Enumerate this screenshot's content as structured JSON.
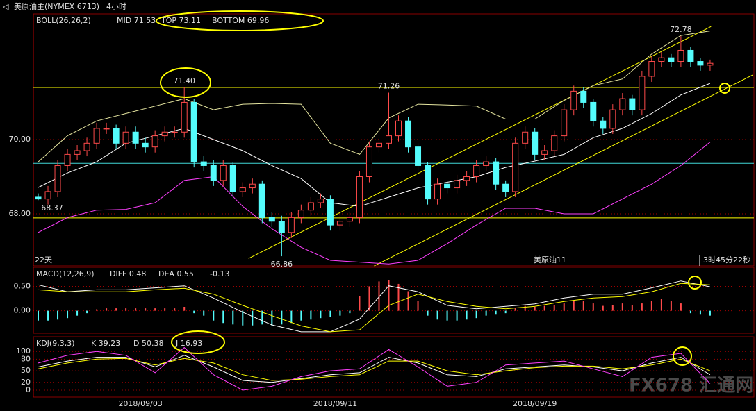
{
  "header": {
    "icon": "◁",
    "title": "美原油主(NYMEX 6713)",
    "period": "4小时",
    "watermark": "FX678 汇通网"
  },
  "chart_data": [
    {
      "type": "candlestick",
      "legend": [
        {
          "text": "BOLL(26,26,2)",
          "color": "#e6e6a0"
        },
        {
          "text": "MID 71.53",
          "color": "#ffffff"
        },
        {
          "text": "TOP 73.11",
          "color": "#ffff00"
        },
        {
          "text": "BOTTOM 69.96",
          "color": "#ff40ff"
        }
      ],
      "xlim": [
        -0.5,
        73.5
      ],
      "ylim": [
        66.6,
        73.38
      ],
      "yticks": [
        {
          "value": 68,
          "label": "68.00"
        },
        {
          "value": 70,
          "label": "70.00"
        }
      ],
      "grid": true,
      "candles": {
        "up_color": "#ff4a4a",
        "down_color": "#54fcfc",
        "open": [
          68.45,
          68.4,
          68.6,
          69.3,
          69.6,
          69.7,
          69.9,
          70.3,
          70.3,
          69.9,
          70.2,
          69.9,
          69.8,
          70.1,
          70.2,
          70.2,
          71.0,
          69.4,
          69.3,
          68.9,
          69.3,
          68.6,
          68.7,
          68.8,
          67.9,
          67.8,
          67.5,
          67.9,
          68.1,
          68.3,
          68.4,
          67.7,
          67.8,
          67.9,
          69.0,
          69.8,
          69.9,
          70.1,
          70.5,
          69.8,
          69.3,
          68.4,
          68.8,
          68.7,
          68.9,
          69.0,
          69.3,
          69.4,
          68.8,
          68.6,
          69.9,
          70.2,
          69.6,
          69.7,
          70.1,
          70.8,
          71.3,
          71.0,
          70.5,
          70.3,
          70.8,
          71.1,
          70.8,
          71.7,
          72.1,
          72.2,
          72.1,
          72.4,
          72.1,
          72.0
        ],
        "high": [
          68.55,
          68.75,
          69.45,
          69.75,
          69.85,
          70.05,
          70.45,
          70.45,
          70.4,
          70.35,
          70.35,
          70.05,
          70.25,
          70.35,
          70.35,
          71.4,
          71.1,
          69.55,
          69.45,
          69.45,
          69.4,
          68.85,
          68.95,
          68.9,
          68.05,
          67.95,
          68.05,
          68.25,
          68.45,
          68.55,
          68.5,
          67.95,
          68.05,
          69.15,
          69.95,
          70.05,
          71.26,
          70.65,
          70.6,
          69.9,
          69.4,
          68.95,
          68.9,
          69.05,
          69.15,
          69.45,
          69.55,
          69.5,
          68.9,
          70.05,
          70.35,
          70.3,
          69.85,
          70.25,
          70.95,
          71.45,
          71.4,
          71.1,
          70.6,
          70.95,
          71.25,
          71.2,
          71.85,
          72.25,
          72.35,
          72.3,
          72.78,
          72.5,
          72.2,
          72.15
        ],
        "low": [
          68.37,
          68.25,
          68.45,
          69.15,
          69.45,
          69.55,
          69.75,
          70.15,
          69.75,
          69.75,
          69.75,
          69.65,
          69.65,
          69.95,
          70.05,
          70.05,
          69.25,
          69.15,
          68.75,
          68.75,
          68.45,
          68.45,
          68.55,
          67.75,
          67.65,
          66.86,
          67.35,
          67.75,
          67.95,
          68.15,
          67.55,
          67.55,
          67.65,
          67.75,
          68.85,
          69.65,
          69.75,
          69.95,
          69.65,
          69.15,
          68.25,
          68.25,
          68.55,
          68.55,
          68.75,
          68.85,
          69.15,
          68.65,
          68.45,
          68.45,
          69.75,
          69.45,
          69.45,
          69.55,
          69.95,
          70.65,
          70.85,
          70.35,
          70.15,
          70.15,
          70.65,
          70.65,
          70.65,
          71.55,
          71.95,
          71.95,
          71.95,
          71.95,
          71.85,
          71.85
        ],
        "close": [
          68.4,
          68.6,
          69.3,
          69.6,
          69.7,
          69.9,
          70.3,
          70.3,
          69.9,
          70.2,
          69.9,
          69.8,
          70.1,
          70.2,
          70.2,
          71.0,
          69.4,
          69.3,
          68.9,
          69.3,
          68.6,
          68.7,
          68.8,
          67.9,
          67.8,
          67.5,
          67.9,
          68.1,
          68.3,
          68.4,
          67.7,
          67.8,
          67.9,
          69.0,
          69.8,
          69.9,
          70.1,
          70.5,
          69.8,
          69.3,
          68.4,
          68.8,
          68.7,
          68.9,
          69.0,
          69.3,
          69.4,
          68.8,
          68.6,
          69.9,
          70.2,
          69.6,
          69.7,
          70.1,
          70.8,
          71.3,
          71.0,
          70.5,
          70.3,
          70.8,
          71.1,
          70.8,
          71.7,
          72.1,
          72.2,
          72.1,
          72.4,
          72.1,
          72.0,
          72.05
        ]
      },
      "series": [
        {
          "color": "#e6e6a0",
          "x": [
            0,
            3,
            6,
            9,
            12,
            15,
            18,
            21,
            24,
            27,
            30,
            33,
            36,
            39,
            42,
            45,
            48,
            51,
            54,
            57,
            60,
            63,
            66,
            69
          ],
          "values": [
            69.4,
            70.1,
            70.5,
            70.7,
            70.9,
            71.1,
            70.8,
            70.95,
            70.97,
            70.95,
            69.9,
            69.6,
            70.58,
            70.95,
            70.93,
            70.9,
            70.55,
            70.55,
            71.05,
            71.45,
            71.63,
            72.3,
            72.8,
            72.92
          ]
        },
        {
          "color": "#ffffff",
          "x": [
            0,
            3,
            6,
            9,
            12,
            15,
            18,
            21,
            24,
            27,
            30,
            33,
            36,
            39,
            42,
            45,
            48,
            51,
            54,
            57,
            60,
            63,
            66,
            69
          ],
          "values": [
            68.71,
            69.1,
            69.4,
            69.9,
            70.1,
            70.3,
            70.0,
            69.7,
            69.3,
            68.95,
            68.3,
            68.2,
            68.45,
            68.7,
            68.85,
            69.0,
            69.25,
            69.42,
            69.6,
            70.05,
            70.3,
            70.7,
            71.2,
            71.51
          ]
        },
        {
          "color": "#ff40ff",
          "x": [
            0,
            3,
            6,
            9,
            12,
            15,
            18,
            21,
            24,
            27,
            30,
            33,
            36,
            39,
            42,
            45,
            48,
            51,
            54,
            57,
            60,
            63,
            66,
            69
          ],
          "values": [
            67.5,
            67.9,
            68.1,
            68.12,
            68.3,
            68.9,
            69.0,
            68.2,
            67.6,
            67.1,
            66.75,
            66.7,
            66.65,
            66.75,
            67.2,
            67.7,
            68.15,
            68.15,
            68.0,
            68.0,
            68.4,
            68.8,
            69.3,
            69.93
          ]
        }
      ],
      "hlines": [
        {
          "value": 71.4,
          "color": "#ffff00"
        },
        {
          "value": 69.36,
          "color": "#40d8d8"
        },
        {
          "value": 67.89,
          "color": "#ffff00"
        }
      ],
      "trendlines": [
        {
          "color": "#ffff00",
          "x": [
            21.6,
            69.1
          ],
          "y": [
            66.8,
            73.04
          ]
        },
        {
          "color": "#ffff00",
          "x": [
            34.5,
            73.4
          ],
          "y": [
            66.6,
            71.74
          ]
        }
      ],
      "annotations": [
        {
          "x": 15,
          "value": 71.4,
          "label": "71.40",
          "color": "#ff5050",
          "position": "above"
        },
        {
          "x": 36,
          "value": 71.26,
          "label": "71.26",
          "color": "#ff5050",
          "position": "above"
        },
        {
          "x": 66,
          "value": 72.78,
          "label": "72.78",
          "color": "#ff5050",
          "position": "above"
        },
        {
          "x": 0,
          "value": 68.37,
          "label": "68.37",
          "color": "#54fcfc",
          "position": "below"
        },
        {
          "x": 25,
          "value": 66.86,
          "label": "66.86",
          "color": "#54fcfc",
          "position": "below"
        }
      ],
      "notes": [
        "22天",
        "美原油11",
        "3时45分22秒"
      ]
    },
    {
      "type": "macd",
      "legend": [
        {
          "text": "MACD(12,26,9)",
          "color": "#e6e6a0"
        },
        {
          "text": "DIFF 0.48",
          "color": "#ffffff"
        },
        {
          "text": "DEA 0.55",
          "color": "#ffff00"
        },
        {
          "text": "-0.13",
          "color": "#ffffff"
        }
      ],
      "xlim": [
        -0.5,
        73.5
      ],
      "ylim": [
        -0.46,
        0.89
      ],
      "yticks": [
        {
          "value": 0.5,
          "label": "0.50"
        },
        {
          "value": 0,
          "label": "0.00"
        }
      ],
      "grid": true,
      "histogram": {
        "up_color": "#ff4a4a",
        "down_color": "#54fcfc",
        "values": [
          -0.2,
          -0.2,
          -0.18,
          -0.15,
          -0.1,
          -0.05,
          0.03,
          0.05,
          0.05,
          0.05,
          0.05,
          0.05,
          0.05,
          0.05,
          0.05,
          0.08,
          -0.05,
          -0.1,
          -0.2,
          -0.25,
          -0.28,
          -0.3,
          -0.3,
          -0.28,
          -0.3,
          -0.28,
          -0.25,
          -0.2,
          -0.18,
          -0.15,
          -0.12,
          -0.1,
          -0.05,
          0.3,
          0.5,
          0.6,
          0.62,
          0.55,
          0.4,
          0.2,
          -0.1,
          -0.18,
          -0.2,
          -0.2,
          -0.18,
          -0.15,
          -0.1,
          -0.08,
          -0.05,
          0.05,
          0.1,
          0.08,
          0.1,
          0.12,
          0.15,
          0.2,
          0.2,
          0.15,
          0.1,
          0.12,
          0.15,
          0.12,
          0.15,
          0.2,
          0.25,
          0.2,
          0.15,
          -0.05,
          -0.08,
          -0.1
        ]
      },
      "series": [
        {
          "color": "#ffffff",
          "x": [
            0,
            3,
            6,
            9,
            12,
            15,
            18,
            21,
            24,
            27,
            30,
            33,
            36,
            39,
            42,
            45,
            48,
            51,
            54,
            57,
            60,
            63,
            66,
            69
          ],
          "values": [
            0.53,
            0.39,
            0.43,
            0.43,
            0.47,
            0.51,
            0.26,
            -0.03,
            -0.29,
            -0.43,
            -0.43,
            -0.17,
            0.51,
            0.39,
            0.11,
            0.04,
            0.09,
            0.14,
            0.26,
            0.34,
            0.34,
            0.47,
            0.61,
            0.49
          ]
        },
        {
          "color": "#ffff00",
          "x": [
            0,
            3,
            6,
            9,
            12,
            15,
            18,
            21,
            24,
            27,
            30,
            33,
            36,
            39,
            42,
            45,
            48,
            51,
            54,
            57,
            60,
            63,
            66,
            69
          ],
          "values": [
            0.43,
            0.39,
            0.39,
            0.39,
            0.43,
            0.46,
            0.34,
            0.11,
            -0.1,
            -0.31,
            -0.43,
            -0.39,
            0.11,
            0.34,
            0.19,
            0.09,
            0.04,
            0.09,
            0.19,
            0.26,
            0.29,
            0.39,
            0.56,
            0.53
          ]
        }
      ]
    },
    {
      "type": "line",
      "legend": [
        {
          "text": "KDJ(9,3,3)",
          "color": "#e6e6a0"
        },
        {
          "text": "K 39.23",
          "color": "#ffffff"
        },
        {
          "text": "D 50.38",
          "color": "#ffff00"
        },
        {
          "text": "J 16.93",
          "color": "#ff40ff"
        }
      ],
      "xlim": [
        -0.5,
        73.5
      ],
      "ylim": [
        -18,
        138
      ],
      "yticks": [
        0,
        20,
        50,
        80,
        100
      ],
      "grid": true,
      "xticks": [
        {
          "value": 10.5,
          "label": "2018/09/03"
        },
        {
          "value": 30.5,
          "label": "2018/09/11"
        },
        {
          "value": 51,
          "label": "2018/09/19"
        }
      ],
      "series": [
        {
          "color": "#ffffff",
          "x": [
            0,
            3,
            6,
            9,
            12,
            15,
            18,
            21,
            24,
            27,
            30,
            33,
            36,
            39,
            42,
            45,
            48,
            51,
            54,
            57,
            60,
            63,
            66,
            69
          ],
          "values": [
            60,
            75,
            85,
            85,
            60,
            90,
            60,
            25,
            20,
            30,
            40,
            45,
            85,
            70,
            40,
            35,
            55,
            60,
            65,
            60,
            50,
            70,
            85,
            40
          ]
        },
        {
          "color": "#ffff00",
          "x": [
            0,
            3,
            6,
            9,
            12,
            15,
            18,
            21,
            24,
            27,
            30,
            33,
            36,
            39,
            42,
            45,
            48,
            51,
            54,
            57,
            60,
            63,
            66,
            69
          ],
          "values": [
            55,
            70,
            80,
            82,
            65,
            82,
            70,
            40,
            25,
            28,
            35,
            40,
            75,
            75,
            50,
            40,
            50,
            58,
            62,
            62,
            55,
            65,
            80,
            50
          ]
        },
        {
          "color": "#ff40ff",
          "x": [
            0,
            3,
            6,
            9,
            12,
            15,
            18,
            21,
            24,
            27,
            30,
            33,
            36,
            39,
            42,
            45,
            48,
            51,
            54,
            57,
            60,
            63,
            66,
            69
          ],
          "values": [
            70,
            90,
            100,
            90,
            45,
            110,
            40,
            0,
            10,
            35,
            50,
            55,
            105,
            60,
            10,
            20,
            65,
            70,
            75,
            55,
            35,
            85,
            95,
            17
          ]
        }
      ]
    }
  ]
}
